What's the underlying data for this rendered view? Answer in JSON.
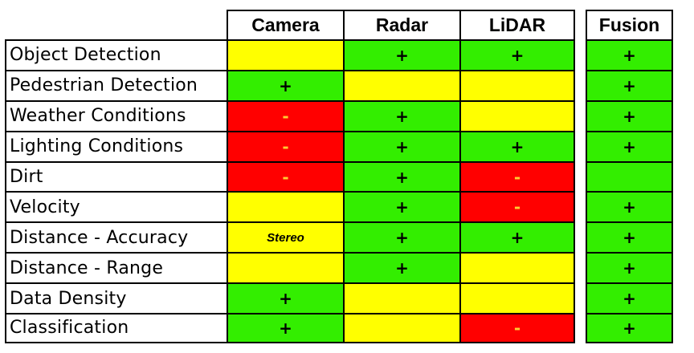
{
  "table": {
    "headers": [
      "Camera",
      "Radar",
      "LiDAR",
      "Fusion"
    ],
    "rows": [
      {
        "label": "Object Detection",
        "cells": [
          {
            "rating": "neutral",
            "text": ""
          },
          {
            "rating": "good",
            "text": "+"
          },
          {
            "rating": "good",
            "text": "+"
          },
          {
            "rating": "good",
            "text": "+"
          }
        ]
      },
      {
        "label": "Pedestrian Detection",
        "cells": [
          {
            "rating": "good",
            "text": "+"
          },
          {
            "rating": "neutral",
            "text": ""
          },
          {
            "rating": "neutral",
            "text": ""
          },
          {
            "rating": "good",
            "text": "+"
          }
        ]
      },
      {
        "label": "Weather Conditions",
        "cells": [
          {
            "rating": "bad",
            "text": "-"
          },
          {
            "rating": "good",
            "text": "+"
          },
          {
            "rating": "neutral",
            "text": ""
          },
          {
            "rating": "good",
            "text": "+"
          }
        ]
      },
      {
        "label": "Lighting Conditions",
        "cells": [
          {
            "rating": "bad",
            "text": "-"
          },
          {
            "rating": "good",
            "text": "+"
          },
          {
            "rating": "good",
            "text": "+"
          },
          {
            "rating": "good",
            "text": "+"
          }
        ]
      },
      {
        "label": "Dirt",
        "cells": [
          {
            "rating": "bad",
            "text": "-"
          },
          {
            "rating": "good",
            "text": "+"
          },
          {
            "rating": "bad",
            "text": "-"
          },
          {
            "rating": "good",
            "text": ""
          }
        ]
      },
      {
        "label": "Velocity",
        "cells": [
          {
            "rating": "neutral",
            "text": ""
          },
          {
            "rating": "good",
            "text": "+"
          },
          {
            "rating": "bad",
            "text": "-"
          },
          {
            "rating": "good",
            "text": "+"
          }
        ]
      },
      {
        "label": "Distance - Accuracy",
        "cells": [
          {
            "rating": "neutral",
            "text": "Stereo"
          },
          {
            "rating": "good",
            "text": "+"
          },
          {
            "rating": "good",
            "text": "+"
          },
          {
            "rating": "good",
            "text": "+"
          }
        ]
      },
      {
        "label": "Distance - Range",
        "cells": [
          {
            "rating": "neutral",
            "text": ""
          },
          {
            "rating": "good",
            "text": "+"
          },
          {
            "rating": "neutral",
            "text": ""
          },
          {
            "rating": "good",
            "text": "+"
          }
        ]
      },
      {
        "label": "Data Density",
        "cells": [
          {
            "rating": "good",
            "text": "+"
          },
          {
            "rating": "neutral",
            "text": ""
          },
          {
            "rating": "neutral",
            "text": ""
          },
          {
            "rating": "good",
            "text": "+"
          }
        ]
      },
      {
        "label": "Classification",
        "cells": [
          {
            "rating": "good",
            "text": "+"
          },
          {
            "rating": "neutral",
            "text": ""
          },
          {
            "rating": "bad",
            "text": "-"
          },
          {
            "rating": "good",
            "text": "+"
          }
        ]
      }
    ]
  },
  "colors": {
    "good": "#33ee00",
    "neutral": "#ffff00",
    "bad": "#ff0000",
    "minus_text": "#ffcc33"
  }
}
